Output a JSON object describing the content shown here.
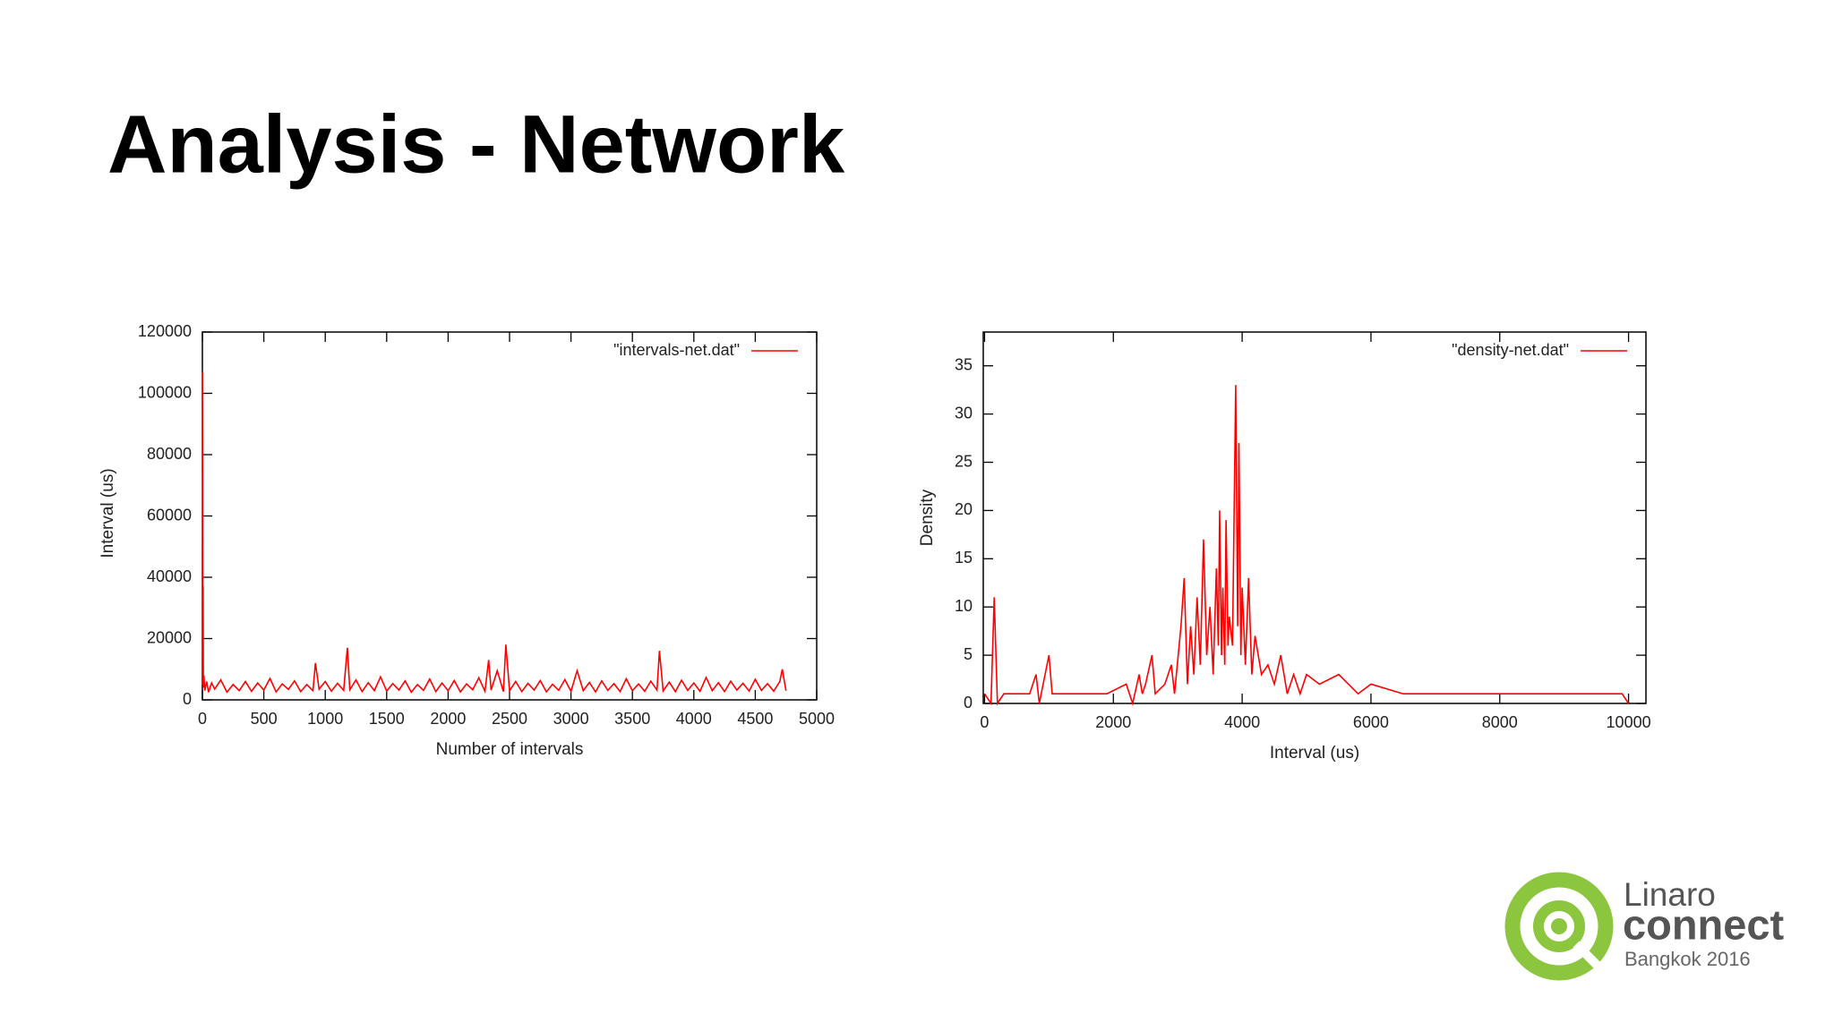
{
  "title": "Analysis - Network",
  "logo": {
    "line1": "Linaro",
    "line2": "connect",
    "line3": "Bangkok 2016"
  },
  "chart_data": [
    {
      "type": "line",
      "xlabel": "Number of intervals",
      "ylabel": "Interval (us)",
      "xlim": [
        0,
        5000
      ],
      "ylim": [
        0,
        120000
      ],
      "xticks": [
        0,
        500,
        1000,
        1500,
        2000,
        2500,
        3000,
        3500,
        4000,
        4500,
        5000
      ],
      "yticks": [
        0,
        20000,
        40000,
        60000,
        80000,
        100000,
        120000
      ],
      "legend": "top-right",
      "series": [
        {
          "name": "\"intervals-net.dat\"",
          "color": "#ff0000",
          "x": [
            0,
            2,
            4,
            6,
            8,
            12,
            20,
            35,
            50,
            75,
            100,
            150,
            200,
            250,
            300,
            350,
            400,
            450,
            500,
            550,
            600,
            650,
            700,
            750,
            800,
            850,
            900,
            920,
            950,
            1000,
            1050,
            1100,
            1150,
            1180,
            1200,
            1250,
            1300,
            1350,
            1400,
            1450,
            1500,
            1550,
            1600,
            1650,
            1700,
            1750,
            1800,
            1850,
            1900,
            1950,
            2000,
            2050,
            2100,
            2150,
            2200,
            2250,
            2300,
            2330,
            2350,
            2400,
            2450,
            2470,
            2500,
            2550,
            2600,
            2650,
            2700,
            2750,
            2800,
            2850,
            2900,
            2950,
            3000,
            3050,
            3100,
            3150,
            3200,
            3250,
            3300,
            3350,
            3400,
            3450,
            3500,
            3550,
            3600,
            3650,
            3700,
            3720,
            3750,
            3800,
            3850,
            3900,
            3950,
            4000,
            4050,
            4100,
            4150,
            4200,
            4250,
            4300,
            4350,
            4400,
            4450,
            4500,
            4550,
            4600,
            4650,
            4700,
            4720,
            4750
          ],
          "values": [
            107000,
            75000,
            5000,
            37000,
            4000,
            8000,
            3000,
            6000,
            2500,
            5500,
            3500,
            6500,
            2500,
            5000,
            3000,
            6000,
            2800,
            5500,
            3200,
            7000,
            2600,
            5200,
            3400,
            6200,
            2700,
            5000,
            3000,
            12000,
            3500,
            6000,
            2800,
            5400,
            3100,
            17000,
            3300,
            6500,
            2700,
            5600,
            3000,
            7500,
            2900,
            5300,
            3200,
            6200,
            2500,
            5000,
            3100,
            6800,
            2700,
            5500,
            3000,
            6300,
            2600,
            5200,
            3300,
            7200,
            2800,
            13000,
            3200,
            9500,
            2700,
            18000,
            3000,
            6000,
            2700,
            5400,
            3200,
            6300,
            2600,
            5100,
            3100,
            6600,
            2800,
            9500,
            3000,
            5700,
            2600,
            6200,
            3100,
            5300,
            2700,
            6900,
            3000,
            5200,
            2800,
            6100,
            3200,
            16000,
            2900,
            5800,
            2700,
            6400,
            3100,
            5500,
            2800,
            7300,
            3000,
            5600,
            2700,
            6100,
            3200,
            5400,
            2900,
            6700,
            3100,
            5300,
            2800,
            6000,
            10000,
            3000
          ]
        }
      ]
    },
    {
      "type": "line",
      "xlabel": "Interval (us)",
      "ylabel": "Density",
      "xlim": [
        -20,
        10270
      ],
      "ylim": [
        0,
        38.5
      ],
      "xticks": [
        0,
        2000,
        4000,
        6000,
        8000,
        10000
      ],
      "yticks": [
        0,
        5,
        10,
        15,
        20,
        25,
        30,
        35
      ],
      "legend": "top-right",
      "series": [
        {
          "name": "\"density-net.dat\"",
          "color": "#ff0000",
          "x": [
            0,
            100,
            150,
            200,
            300,
            500,
            700,
            800,
            850,
            1000,
            1050,
            1300,
            1600,
            1900,
            2200,
            2300,
            2400,
            2450,
            2500,
            2600,
            2650,
            2800,
            2900,
            2950,
            3050,
            3100,
            3150,
            3200,
            3250,
            3300,
            3350,
            3400,
            3450,
            3500,
            3550,
            3600,
            3630,
            3650,
            3680,
            3700,
            3730,
            3750,
            3780,
            3800,
            3850,
            3900,
            3930,
            3950,
            3980,
            4000,
            4050,
            4100,
            4150,
            4200,
            4300,
            4400,
            4500,
            4600,
            4700,
            4800,
            4900,
            5000,
            5200,
            5500,
            5800,
            6000,
            6500,
            7000,
            7500,
            8000,
            8500,
            9000,
            9500,
            9900,
            10000
          ],
          "values": [
            1,
            0,
            11,
            0,
            1,
            1,
            1,
            3,
            0,
            5,
            1,
            1,
            1,
            1,
            2,
            0,
            3,
            1,
            2,
            5,
            1,
            2,
            4,
            1,
            8,
            13,
            2,
            8,
            3,
            11,
            4,
            17,
            5,
            10,
            3,
            14,
            6,
            20,
            5,
            12,
            4,
            19,
            6,
            9,
            6,
            33,
            8,
            27,
            5,
            12,
            4,
            13,
            3,
            7,
            3,
            4,
            2,
            5,
            1,
            3,
            1,
            3,
            2,
            3,
            1,
            2,
            1,
            1,
            1,
            1,
            1,
            1,
            1,
            1,
            0
          ]
        }
      ]
    }
  ]
}
